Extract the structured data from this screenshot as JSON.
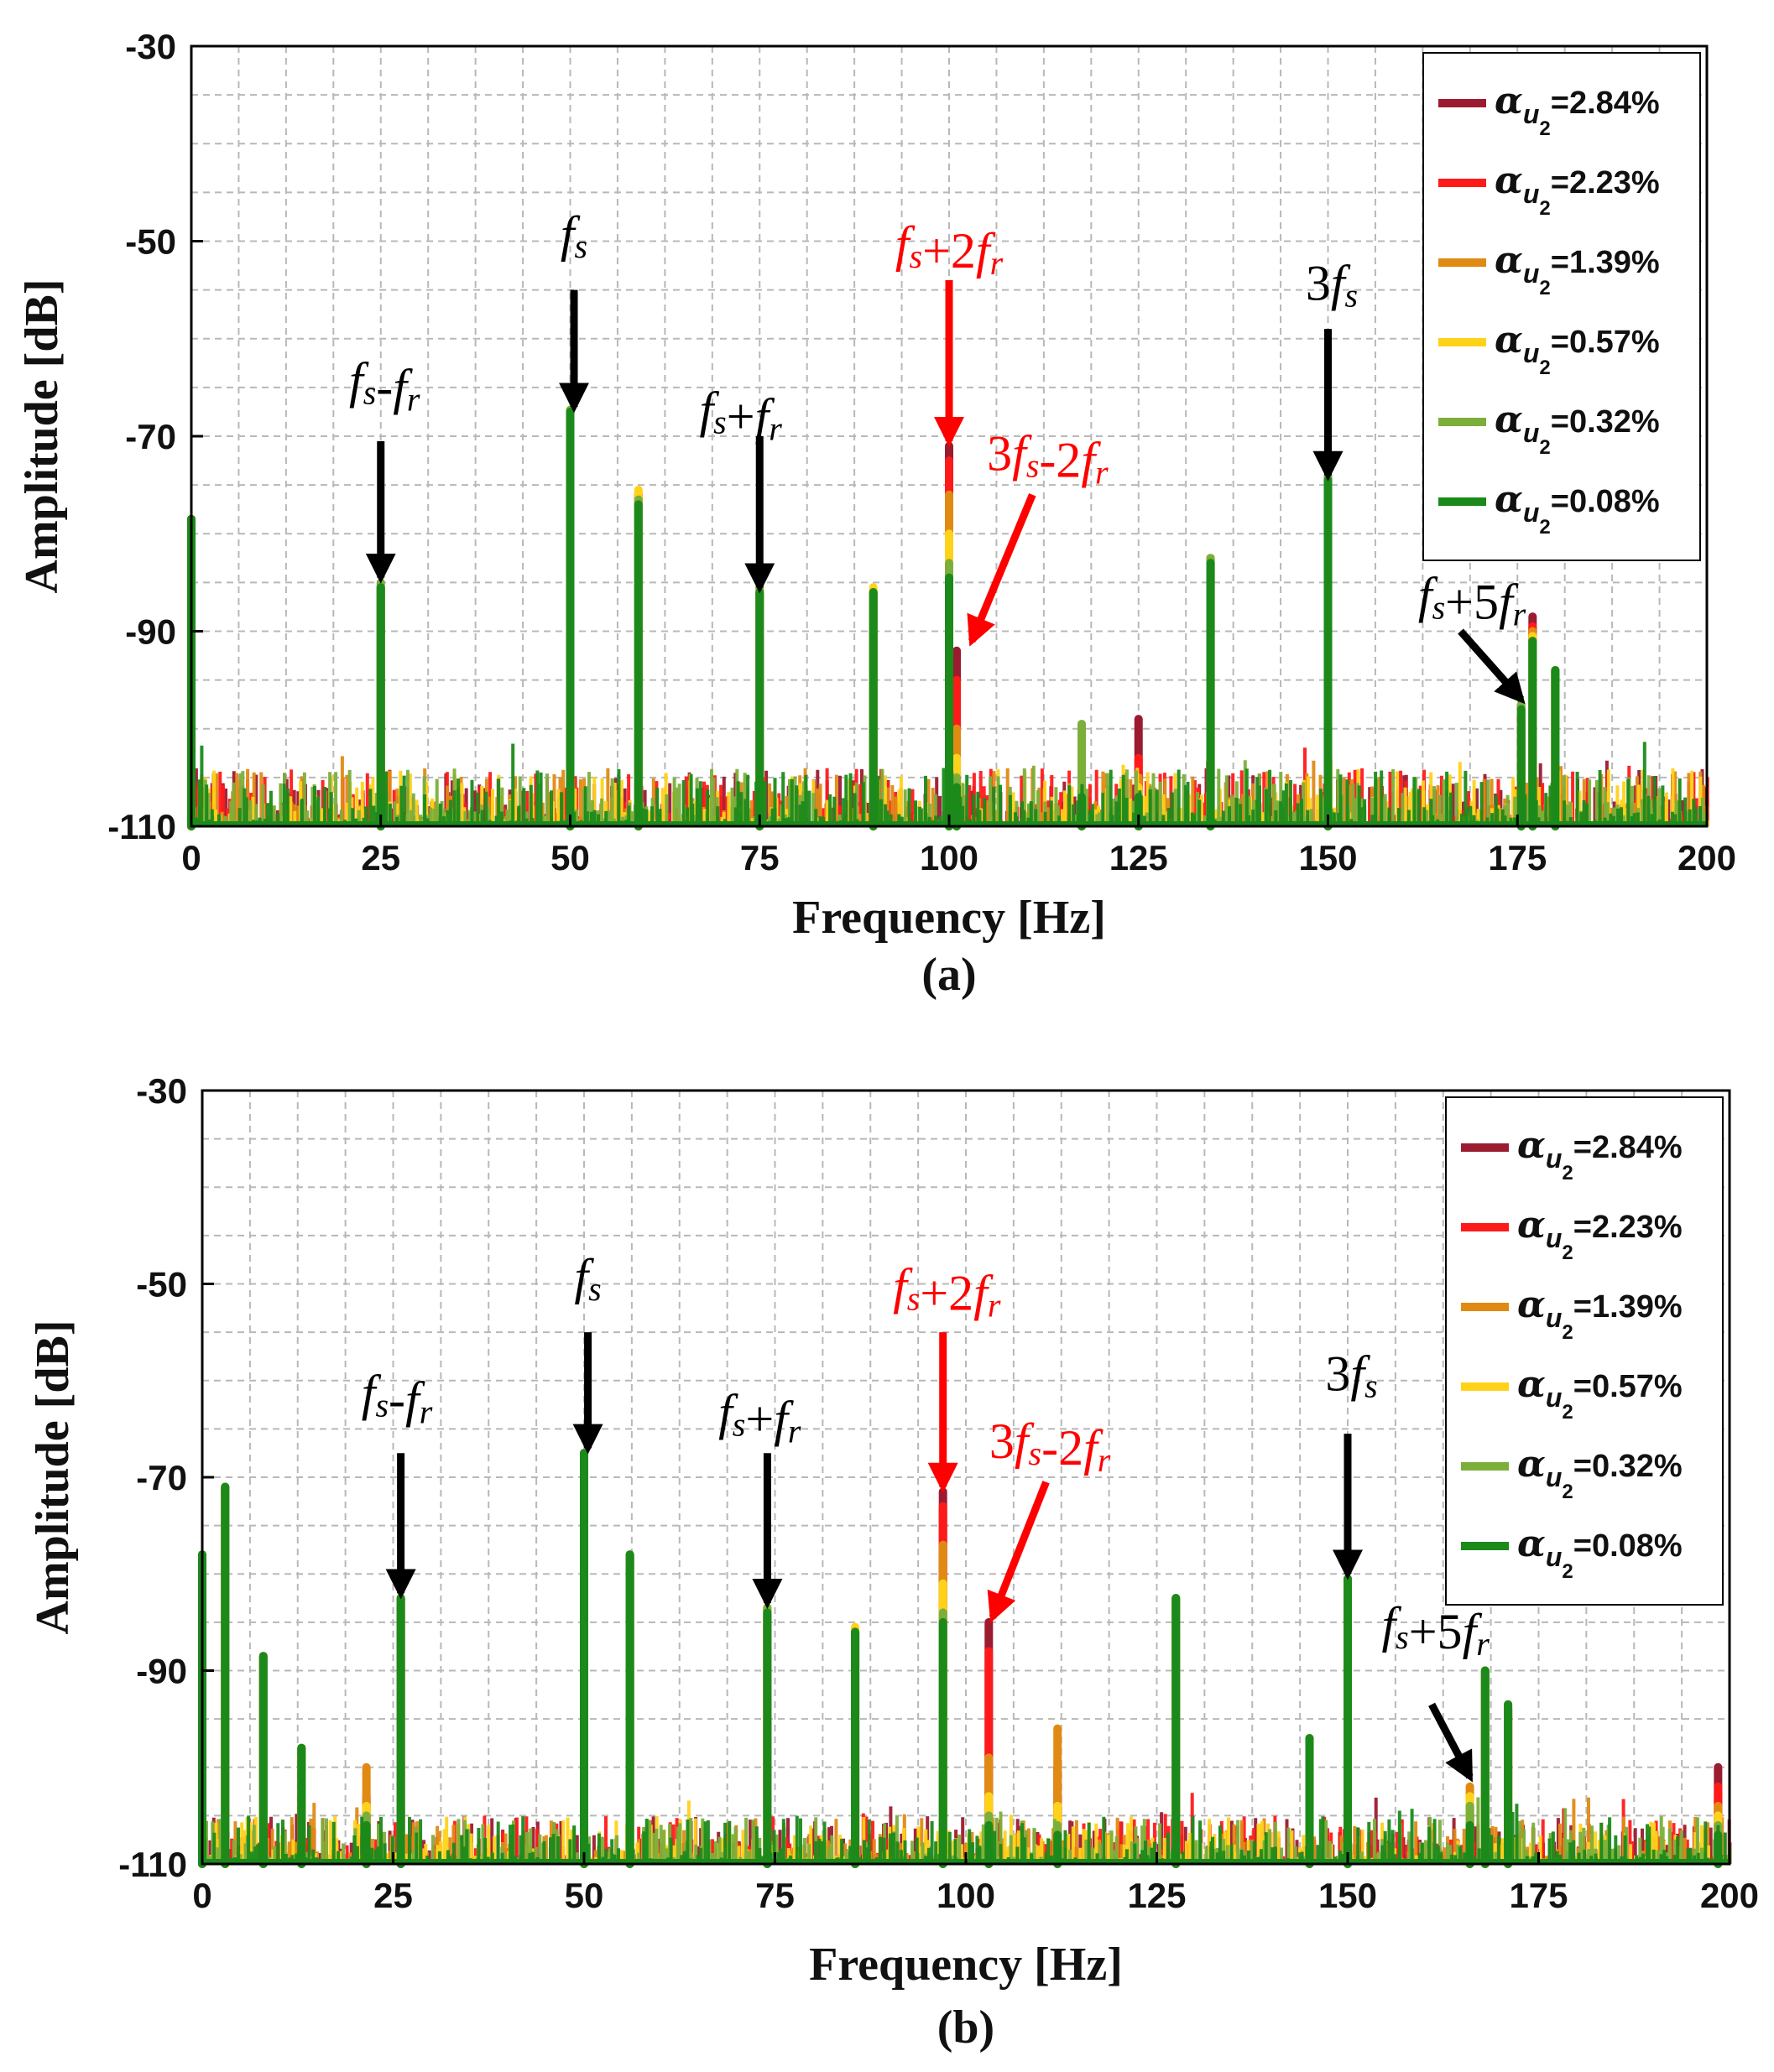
{
  "colors": {
    "series": [
      "#9b1b30",
      "#ff1a1a",
      "#e08a14",
      "#ffd21a",
      "#7caf3a",
      "#1b8a1b"
    ],
    "grid": "#b8b8b8",
    "arrow_black": "#000000",
    "arrow_red": "#ff0000"
  },
  "legend_labels": [
    "=2.84%",
    "=2.23%",
    "=1.39%",
    "=0.57%",
    "=0.32%",
    "=0.08%"
  ],
  "legend_symbol": {
    "alpha": "α",
    "sub": "u",
    "subsub": "2"
  },
  "chart_data": [
    {
      "type": "line",
      "caption": "(a)",
      "xlabel": "Frequency [Hz]",
      "ylabel": "Amplitude [dB]",
      "xlim": [
        0,
        200
      ],
      "ylim": [
        -110,
        -30
      ],
      "xticks": [
        0,
        25,
        50,
        75,
        100,
        125,
        150,
        175,
        200
      ],
      "yticks": [
        -30,
        -50,
        -70,
        -90,
        -110
      ],
      "grid": true,
      "legend_position": "top-right",
      "series_names": [
        "α_u2=2.84%",
        "α_u2=2.23%",
        "α_u2=1.39%",
        "α_u2=0.57%",
        "α_u2=0.32%",
        "α_u2=0.08%"
      ],
      "peaks": [
        {
          "f": 0,
          "values": [
            -78.5,
            -78.5,
            -78.5,
            -78.5,
            -78.5,
            -78.5
          ]
        },
        {
          "f": 25,
          "values": [
            -85.5,
            -85.5,
            -85.5,
            -85.5,
            -85,
            -85.5
          ]
        },
        {
          "f": 50,
          "values": [
            -67.5,
            -67.5,
            -67.5,
            -67.5,
            -67.3,
            -67.5
          ]
        },
        {
          "f": 59,
          "values": [
            -76,
            -76,
            -76,
            -75.5,
            -76.5,
            -77
          ]
        },
        {
          "f": 75,
          "values": [
            -86,
            -86,
            -86,
            -86,
            -85.5,
            -86
          ]
        },
        {
          "f": 90,
          "values": [
            -86,
            -86,
            -86,
            -85.5,
            -86,
            -86
          ]
        },
        {
          "f": 100,
          "values": [
            -71,
            -72.5,
            -76,
            -80,
            -83,
            -84.5
          ]
        },
        {
          "f": 101,
          "values": [
            -92,
            -95,
            -100,
            -103,
            -105,
            -106
          ]
        },
        {
          "f": 117.5,
          "values": [
            -107,
            -107,
            -107,
            -107,
            -99.5,
            -107
          ]
        },
        {
          "f": 125,
          "values": [
            -99,
            -103,
            -105,
            -106,
            -107,
            -107
          ]
        },
        {
          "f": 134.5,
          "values": [
            -82.5,
            -82.5,
            -82.5,
            -83,
            -82.5,
            -83
          ]
        },
        {
          "f": 150,
          "values": [
            -74.5,
            -74.5,
            -74.5,
            -74.5,
            -74,
            -74.5
          ]
        },
        {
          "f": 175.5,
          "values": [
            -100,
            -99,
            -98.5,
            -98,
            -97.5,
            -98
          ]
        },
        {
          "f": 177,
          "values": [
            -88.5,
            -89.5,
            -90,
            -90.5,
            -91,
            -91
          ]
        },
        {
          "f": 180,
          "values": [
            -94,
            -94,
            -94,
            -94,
            -94,
            -94
          ]
        }
      ],
      "noise_floor": [
        -110,
        -104
      ],
      "annotations": [
        {
          "text_parts": [
            [
              "f",
              "s",
              false
            ],
            [
              "-",
              "",
              false
            ],
            [
              "f",
              "r",
              false
            ]
          ],
          "color": "black",
          "tx": 25.5,
          "ty": -66,
          "ax": 25,
          "ay1": -70.5,
          "ax2": 25,
          "ay2": -84.5
        },
        {
          "text_parts": [
            [
              "f",
              "s",
              false
            ]
          ],
          "color": "black",
          "tx": 50.5,
          "ty": -51,
          "ax": 50.5,
          "ay1": -55,
          "ax2": 50.5,
          "ay2": -67
        },
        {
          "text_parts": [
            [
              "f",
              "s",
              false
            ],
            [
              "+",
              "",
              false
            ],
            [
              "f",
              "r",
              false
            ]
          ],
          "color": "black",
          "tx": 72.5,
          "ty": -69,
          "ax": 75,
          "ay1": -70,
          "ax2": 75,
          "ay2": -85.5
        },
        {
          "text_parts": [
            [
              "f",
              "s",
              false
            ],
            [
              "+2",
              "",
              false
            ],
            [
              "f",
              "r",
              false
            ]
          ],
          "color": "red",
          "tx": 100,
          "ty": -52,
          "ax": 100,
          "ay1": -54,
          "ax2": 100,
          "ay2": -70.5
        },
        {
          "text_parts": [
            [
              "3",
              "",
              false
            ],
            [
              "f",
              "s",
              false
            ],
            [
              "-2",
              "",
              false
            ],
            [
              "f",
              "r",
              false
            ]
          ],
          "color": "red",
          "tx": 113,
          "ty": -73.5,
          "ax": 111,
          "ay1": -76,
          "ax2": 103,
          "ay2": -91
        },
        {
          "text_parts": [
            [
              "3",
              "",
              false
            ],
            [
              "f",
              "s",
              false
            ]
          ],
          "color": "black",
          "tx": 150.5,
          "ty": -56,
          "ax": 150,
          "ay1": -59,
          "ax2": 150,
          "ay2": -74
        },
        {
          "text_parts": [
            [
              "f",
              "s",
              false
            ],
            [
              "+5",
              "",
              false
            ],
            [
              "f",
              "r",
              false
            ]
          ],
          "color": "black",
          "tx": 169,
          "ty": -88,
          "ax": 167.5,
          "ay1": -90,
          "ax2": 175.5,
          "ay2": -97
        }
      ]
    },
    {
      "type": "line",
      "caption": "(b)",
      "xlabel": "Frequency [Hz]",
      "ylabel": "Amplitude [dB]",
      "xlim": [
        0,
        200
      ],
      "ylim": [
        -110,
        -30
      ],
      "xticks": [
        0,
        25,
        50,
        75,
        100,
        125,
        150,
        175,
        200
      ],
      "yticks": [
        -30,
        -50,
        -70,
        -90,
        -110
      ],
      "grid": true,
      "legend_position": "top-right",
      "series_names": [
        "α_u2=2.84%",
        "α_u2=2.23%",
        "α_u2=1.39%",
        "α_u2=0.57%",
        "α_u2=0.32%",
        "α_u2=0.08%"
      ],
      "peaks": [
        {
          "f": 0,
          "values": [
            -78,
            -78,
            -78,
            -78,
            -78,
            -78
          ]
        },
        {
          "f": 3,
          "values": [
            -71,
            -71,
            -71,
            -71.5,
            -71.5,
            -71
          ]
        },
        {
          "f": 8,
          "values": [
            -88.5,
            -88.5,
            -88.5,
            -88.5,
            -88.5,
            -88.5
          ]
        },
        {
          "f": 13,
          "values": [
            -98,
            -98,
            -98,
            -98,
            -98,
            -98
          ]
        },
        {
          "f": 21.5,
          "values": [
            -105,
            -103,
            -100,
            -104,
            -105,
            -106
          ]
        },
        {
          "f": 26,
          "values": [
            -82.5,
            -82.5,
            -82.5,
            -82.5,
            -82.5,
            -82.5
          ]
        },
        {
          "f": 50,
          "values": [
            -67.5,
            -67.5,
            -67.5,
            -67.5,
            -67.5,
            -67.5
          ]
        },
        {
          "f": 56,
          "values": [
            -78,
            -78,
            -78,
            -78,
            -78,
            -78
          ]
        },
        {
          "f": 74,
          "values": [
            -83.5,
            -83.5,
            -83.5,
            -83.5,
            -83.5,
            -84
          ]
        },
        {
          "f": 85.5,
          "values": [
            -86,
            -86,
            -86,
            -85.5,
            -86,
            -86
          ]
        },
        {
          "f": 97,
          "values": [
            -71.5,
            -73,
            -77,
            -81,
            -84,
            -85
          ]
        },
        {
          "f": 103,
          "values": [
            -85,
            -88,
            -99,
            -103,
            -105,
            -106
          ]
        },
        {
          "f": 112,
          "values": [
            -104,
            -100,
            -96,
            -104,
            -106,
            -107
          ]
        },
        {
          "f": 127.5,
          "values": [
            -82.5,
            -82.5,
            -82.5,
            -82.5,
            -82.5,
            -82.5
          ]
        },
        {
          "f": 145,
          "values": [
            -97,
            -97,
            -97,
            -97,
            -97,
            -97
          ]
        },
        {
          "f": 150,
          "values": [
            -80.5,
            -80.5,
            -80.5,
            -80.5,
            -80.5,
            -80.5
          ]
        },
        {
          "f": 166,
          "values": [
            -105,
            -104,
            -102,
            -103,
            -104,
            -106
          ]
        },
        {
          "f": 168,
          "values": [
            -90,
            -90,
            -90,
            -90,
            -90,
            -90
          ]
        },
        {
          "f": 171,
          "values": [
            -94,
            -94,
            -94,
            -94,
            -93.5,
            -93.5
          ]
        },
        {
          "f": 198.5,
          "values": [
            -100,
            -102,
            -104,
            -105,
            -106,
            -107
          ]
        }
      ],
      "noise_floor": [
        -110,
        -105
      ],
      "annotations": [
        {
          "text_parts": [
            [
              "f",
              "s",
              false
            ],
            [
              "-",
              "",
              false
            ],
            [
              "f",
              "r",
              false
            ]
          ],
          "color": "black",
          "tx": 25.5,
          "ty": -63,
          "ax": 26,
          "ay1": -67.5,
          "ax2": 26,
          "ay2": -82
        },
        {
          "text_parts": [
            [
              "f",
              "s",
              false
            ]
          ],
          "color": "black",
          "tx": 50.5,
          "ty": -51,
          "ax": 50.5,
          "ay1": -55,
          "ax2": 50.5,
          "ay2": -67
        },
        {
          "text_parts": [
            [
              "f",
              "s",
              false
            ],
            [
              "+",
              "",
              false
            ],
            [
              "f",
              "r",
              false
            ]
          ],
          "color": "black",
          "tx": 73,
          "ty": -65,
          "ax": 74,
          "ay1": -67.5,
          "ax2": 74,
          "ay2": -83
        },
        {
          "text_parts": [
            [
              "f",
              "s",
              false
            ],
            [
              "+2",
              "",
              false
            ],
            [
              "f",
              "r",
              false
            ]
          ],
          "color": "red",
          "tx": 97.5,
          "ty": -52,
          "ax": 97,
          "ay1": -55,
          "ax2": 97,
          "ay2": -71
        },
        {
          "text_parts": [
            [
              "3",
              "",
              false
            ],
            [
              "f",
              "s",
              false
            ],
            [
              "-2",
              "",
              false
            ],
            [
              "f",
              "r",
              false
            ]
          ],
          "color": "red",
          "tx": 111,
          "ty": -68,
          "ax": 110.5,
          "ay1": -70.5,
          "ax2": 103.5,
          "ay2": -84.5
        },
        {
          "text_parts": [
            [
              "3",
              "",
              false
            ],
            [
              "f",
              "s",
              false
            ]
          ],
          "color": "black",
          "tx": 150.5,
          "ty": -61,
          "ax": 150,
          "ay1": -65.5,
          "ax2": 150,
          "ay2": -80
        },
        {
          "text_parts": [
            [
              "f",
              "s",
              false
            ],
            [
              "+5",
              "",
              false
            ],
            [
              "f",
              "r",
              false
            ]
          ],
          "color": "black",
          "tx": 161.5,
          "ty": -87,
          "ax": 161,
          "ay1": -93.5,
          "ax2": 166,
          "ay2": -101
        }
      ]
    }
  ]
}
